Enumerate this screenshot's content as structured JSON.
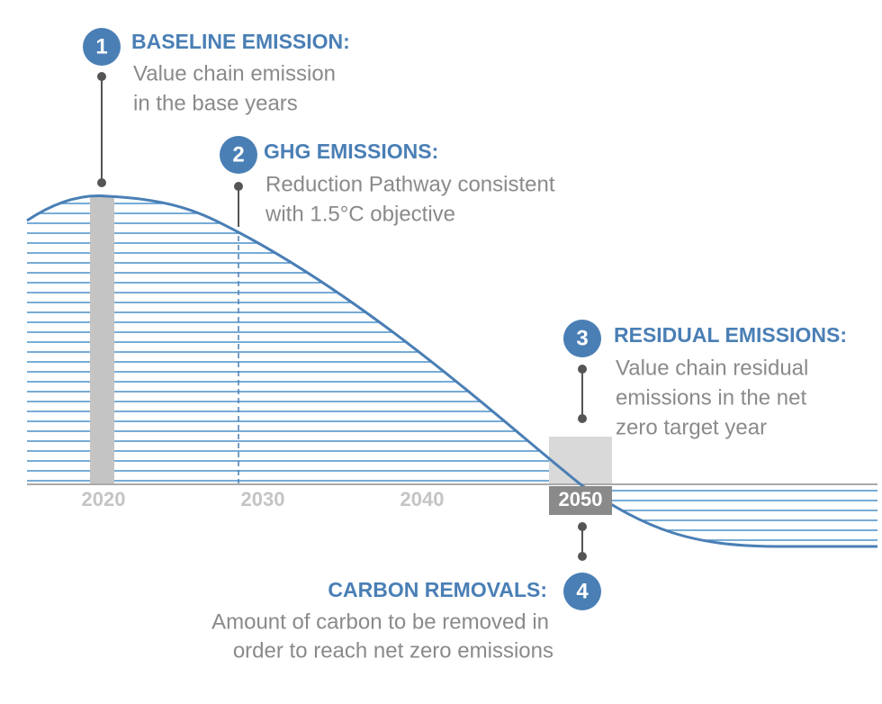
{
  "callouts": [
    {
      "number": "1",
      "title": "BASELINE EMISSION:",
      "lines": [
        "Value chain emission",
        "in the base years"
      ]
    },
    {
      "number": "2",
      "title": "GHG EMISSIONS:",
      "lines": [
        "Reduction Pathway consistent",
        "with 1.5°C objective"
      ]
    },
    {
      "number": "3",
      "title": "RESIDUAL EMISSIONS:",
      "lines": [
        "Value chain residual",
        "emissions in the net",
        "zero target year"
      ]
    },
    {
      "number": "4",
      "title": "CARBON REMOVALS:",
      "lines": [
        "Amount of carbon to be removed in",
        "order to reach net zero emissions"
      ]
    }
  ],
  "years": [
    "2020",
    "2030",
    "2040",
    "2050"
  ]
}
